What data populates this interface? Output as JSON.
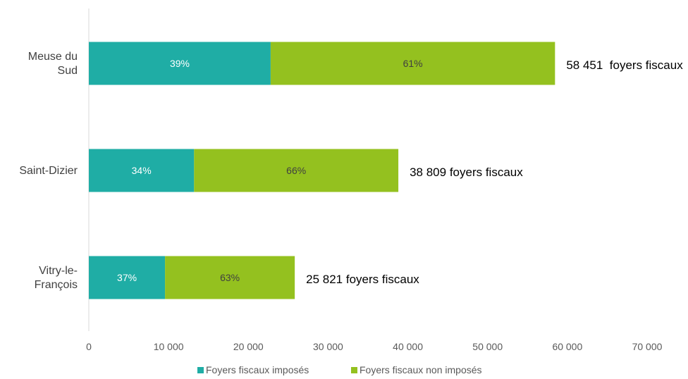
{
  "chart_data": {
    "type": "bar",
    "orientation": "horizontal",
    "stacked": true,
    "categories": [
      "Meuse du Sud",
      "Saint-Dizier",
      "Vitry-le-François"
    ],
    "category_label_lines": [
      [
        "Meuse du",
        "Sud"
      ],
      [
        "Saint-Dizier"
      ],
      [
        "Vitry-le-",
        "François"
      ]
    ],
    "series": [
      {
        "name": "Foyers fiscaux imposés",
        "color": "#1fada5",
        "values": [
          22796,
          13195,
          9554
        ],
        "labels": [
          "39%",
          "34%",
          "37%"
        ],
        "label_color": "#ffffff"
      },
      {
        "name": "Foyers fiscaux non imposés",
        "color": "#94c11f",
        "values": [
          35655,
          25614,
          16267
        ],
        "labels": [
          "61%",
          "66%",
          "63%"
        ],
        "label_color": "#404040"
      }
    ],
    "totals": [
      58451,
      38809,
      25821
    ],
    "total_labels": [
      "58 451  foyers fiscaux",
      "38 809 foyers fiscaux",
      "25 821 foyers fiscaux"
    ],
    "xlim": [
      0,
      70000
    ],
    "xticks": [
      0,
      10000,
      20000,
      30000,
      40000,
      50000,
      60000,
      70000
    ],
    "xtick_labels": [
      "0",
      "10 000",
      "20 000",
      "30 000",
      "40 000",
      "50 000",
      "60 000",
      "70 000"
    ],
    "grid": false,
    "legend_position": "bottom",
    "title": "",
    "xlabel": "",
    "ylabel": ""
  }
}
